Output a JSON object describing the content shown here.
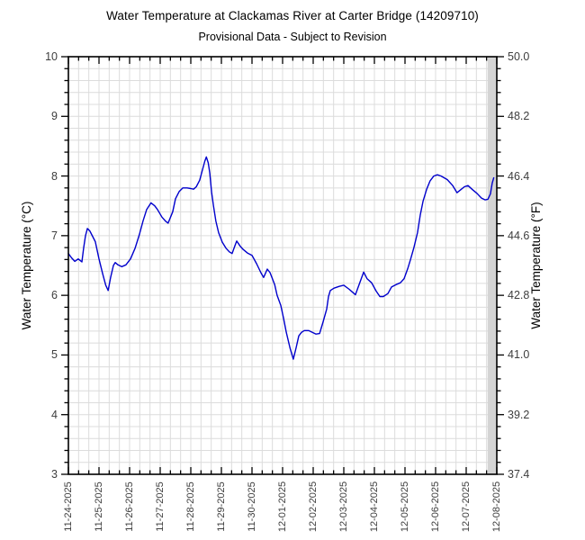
{
  "header": {
    "title": "Water Temperature at Clackamas River at Carter Bridge (14209710)",
    "subtitle": "Provisional Data - Subject to Revision"
  },
  "chart_data": {
    "type": "line",
    "title": "Water Temperature at Clackamas River at Carter Bridge (14209710)",
    "subtitle": "Provisional Data - Subject to Revision",
    "grid": {
      "on": true,
      "color": "#dcdcdc",
      "x_minor_per_day": 3,
      "y_minor_step_c": 0.2
    },
    "x_axis": {
      "unit": "date",
      "range_days": [
        0,
        14
      ],
      "tick_labels": [
        "11-24-2025",
        "11-25-2025",
        "11-26-2025",
        "11-27-2025",
        "11-28-2025",
        "11-29-2025",
        "11-30-2025",
        "12-01-2025",
        "12-02-2025",
        "12-03-2025",
        "12-04-2025",
        "12-05-2025",
        "12-06-2025",
        "12-07-2025",
        "12-08-2025"
      ]
    },
    "y_left": {
      "label": "Water Temperature (°C)",
      "range": [
        3,
        10
      ],
      "tick_labels": [
        "10",
        "9",
        "8",
        "7",
        "6",
        "5",
        "4",
        "3"
      ]
    },
    "y_right": {
      "label": "Water Temperature (°F)",
      "range": [
        37.4,
        50.0
      ],
      "tick_labels": [
        "50.0",
        "48.2",
        "46.4",
        "44.6",
        "42.8",
        "41.0",
        "39.2",
        "37.4"
      ]
    },
    "shaded_band": {
      "from_day": 13.7,
      "to_day": 14.0,
      "color": "#d4d4d4"
    },
    "series": [
      {
        "name": "water-temperature-degC",
        "color": "#0000cc",
        "points_day_degC": [
          [
            0.0,
            6.7
          ],
          [
            0.1,
            6.63
          ],
          [
            0.21,
            6.57
          ],
          [
            0.32,
            6.61
          ],
          [
            0.44,
            6.56
          ],
          [
            0.5,
            6.8
          ],
          [
            0.56,
            7.0
          ],
          [
            0.62,
            7.12
          ],
          [
            0.7,
            7.08
          ],
          [
            0.76,
            7.02
          ],
          [
            0.88,
            6.9
          ],
          [
            1.0,
            6.61
          ],
          [
            1.12,
            6.36
          ],
          [
            1.22,
            6.17
          ],
          [
            1.3,
            6.08
          ],
          [
            1.38,
            6.3
          ],
          [
            1.47,
            6.5
          ],
          [
            1.53,
            6.55
          ],
          [
            1.62,
            6.51
          ],
          [
            1.74,
            6.48
          ],
          [
            1.88,
            6.51
          ],
          [
            2.03,
            6.61
          ],
          [
            2.18,
            6.79
          ],
          [
            2.32,
            7.02
          ],
          [
            2.44,
            7.25
          ],
          [
            2.56,
            7.44
          ],
          [
            2.7,
            7.55
          ],
          [
            2.82,
            7.5
          ],
          [
            2.91,
            7.44
          ],
          [
            3.06,
            7.31
          ],
          [
            3.18,
            7.24
          ],
          [
            3.26,
            7.21
          ],
          [
            3.41,
            7.4
          ],
          [
            3.5,
            7.62
          ],
          [
            3.62,
            7.74
          ],
          [
            3.74,
            7.8
          ],
          [
            3.88,
            7.8
          ],
          [
            4.0,
            7.79
          ],
          [
            4.09,
            7.78
          ],
          [
            4.18,
            7.82
          ],
          [
            4.29,
            7.93
          ],
          [
            4.38,
            8.1
          ],
          [
            4.46,
            8.25
          ],
          [
            4.51,
            8.32
          ],
          [
            4.57,
            8.22
          ],
          [
            4.62,
            8.05
          ],
          [
            4.68,
            7.73
          ],
          [
            4.74,
            7.5
          ],
          [
            4.82,
            7.24
          ],
          [
            4.91,
            7.05
          ],
          [
            5.03,
            6.89
          ],
          [
            5.15,
            6.79
          ],
          [
            5.26,
            6.73
          ],
          [
            5.35,
            6.7
          ],
          [
            5.44,
            6.83
          ],
          [
            5.5,
            6.91
          ],
          [
            5.62,
            6.82
          ],
          [
            5.71,
            6.77
          ],
          [
            5.85,
            6.71
          ],
          [
            6.0,
            6.67
          ],
          [
            6.15,
            6.53
          ],
          [
            6.29,
            6.38
          ],
          [
            6.38,
            6.3
          ],
          [
            6.5,
            6.44
          ],
          [
            6.59,
            6.38
          ],
          [
            6.74,
            6.18
          ],
          [
            6.82,
            6.0
          ],
          [
            6.94,
            5.83
          ],
          [
            7.03,
            5.62
          ],
          [
            7.12,
            5.38
          ],
          [
            7.24,
            5.12
          ],
          [
            7.35,
            4.93
          ],
          [
            7.44,
            5.12
          ],
          [
            7.53,
            5.32
          ],
          [
            7.62,
            5.38
          ],
          [
            7.71,
            5.41
          ],
          [
            7.85,
            5.41
          ],
          [
            7.97,
            5.38
          ],
          [
            8.09,
            5.35
          ],
          [
            8.21,
            5.36
          ],
          [
            8.32,
            5.55
          ],
          [
            8.44,
            5.77
          ],
          [
            8.5,
            5.98
          ],
          [
            8.56,
            6.08
          ],
          [
            8.68,
            6.12
          ],
          [
            8.85,
            6.15
          ],
          [
            9.0,
            6.17
          ],
          [
            9.18,
            6.1
          ],
          [
            9.29,
            6.05
          ],
          [
            9.38,
            6.01
          ],
          [
            9.5,
            6.18
          ],
          [
            9.65,
            6.39
          ],
          [
            9.76,
            6.28
          ],
          [
            9.91,
            6.21
          ],
          [
            10.06,
            6.07
          ],
          [
            10.18,
            5.98
          ],
          [
            10.29,
            5.98
          ],
          [
            10.44,
            6.03
          ],
          [
            10.56,
            6.14
          ],
          [
            10.71,
            6.18
          ],
          [
            10.85,
            6.21
          ],
          [
            10.97,
            6.28
          ],
          [
            11.09,
            6.45
          ],
          [
            11.18,
            6.6
          ],
          [
            11.29,
            6.8
          ],
          [
            11.41,
            7.05
          ],
          [
            11.5,
            7.35
          ],
          [
            11.59,
            7.58
          ],
          [
            11.71,
            7.78
          ],
          [
            11.82,
            7.92
          ],
          [
            11.94,
            8.0
          ],
          [
            12.06,
            8.02
          ],
          [
            12.18,
            8.0
          ],
          [
            12.38,
            7.94
          ],
          [
            12.56,
            7.84
          ],
          [
            12.7,
            7.72
          ],
          [
            12.82,
            7.77
          ],
          [
            12.94,
            7.82
          ],
          [
            13.06,
            7.84
          ],
          [
            13.21,
            7.77
          ],
          [
            13.35,
            7.71
          ],
          [
            13.5,
            7.63
          ],
          [
            13.62,
            7.6
          ],
          [
            13.71,
            7.61
          ],
          [
            13.79,
            7.7
          ],
          [
            13.85,
            7.88
          ],
          [
            13.9,
            7.97
          ]
        ]
      }
    ]
  }
}
